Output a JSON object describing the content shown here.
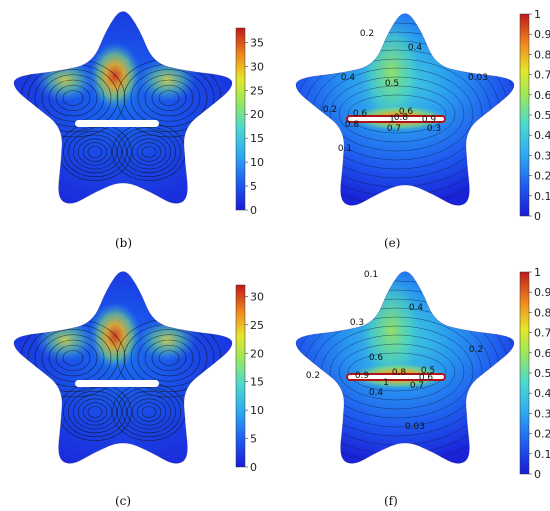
{
  "panels": [
    {
      "id": "b",
      "label": "(b)",
      "kind": "streamlines",
      "colorbar": {
        "min": 0,
        "max": 38,
        "ticks": [
          "35",
          "30",
          "25",
          "20",
          "15",
          "10",
          "5",
          "0"
        ]
      }
    },
    {
      "id": "e",
      "label": "(e)",
      "kind": "concentration",
      "colorbar": {
        "min": 0,
        "max": 1,
        "ticks": [
          "1",
          "0.9",
          "0.8",
          "0.7",
          "0.6",
          "0.5",
          "0.4",
          "0.3",
          "0.2",
          "0.1",
          "0"
        ]
      },
      "contour_labels": [
        "0.2",
        "0.4",
        "0.4",
        "0.03",
        "0.5",
        "0.2",
        "0.6",
        "0.6",
        "1",
        "0.8",
        "0.8",
        "0.9",
        "0.7",
        "0.3",
        "0.1"
      ]
    },
    {
      "id": "c",
      "label": "(c)",
      "kind": "streamlines",
      "colorbar": {
        "min": 0,
        "max": 32,
        "ticks": [
          "30",
          "25",
          "20",
          "15",
          "10",
          "5",
          "0"
        ]
      }
    },
    {
      "id": "f",
      "label": "(f)",
      "kind": "concentration",
      "colorbar": {
        "min": 0,
        "max": 1,
        "ticks": [
          "1",
          "0.9",
          "0.8",
          "0.7",
          "0.6",
          "0.5",
          "0.4",
          "0.3",
          "0.2",
          "0.1",
          "0"
        ]
      },
      "contour_labels": [
        "0.1",
        "0.4",
        "0.3",
        "0.2",
        "0.6",
        "0.2",
        "0.9",
        "0.8",
        "0.5",
        "0.6",
        "1",
        "0.7",
        "0.4",
        "0.03"
      ]
    }
  ]
}
